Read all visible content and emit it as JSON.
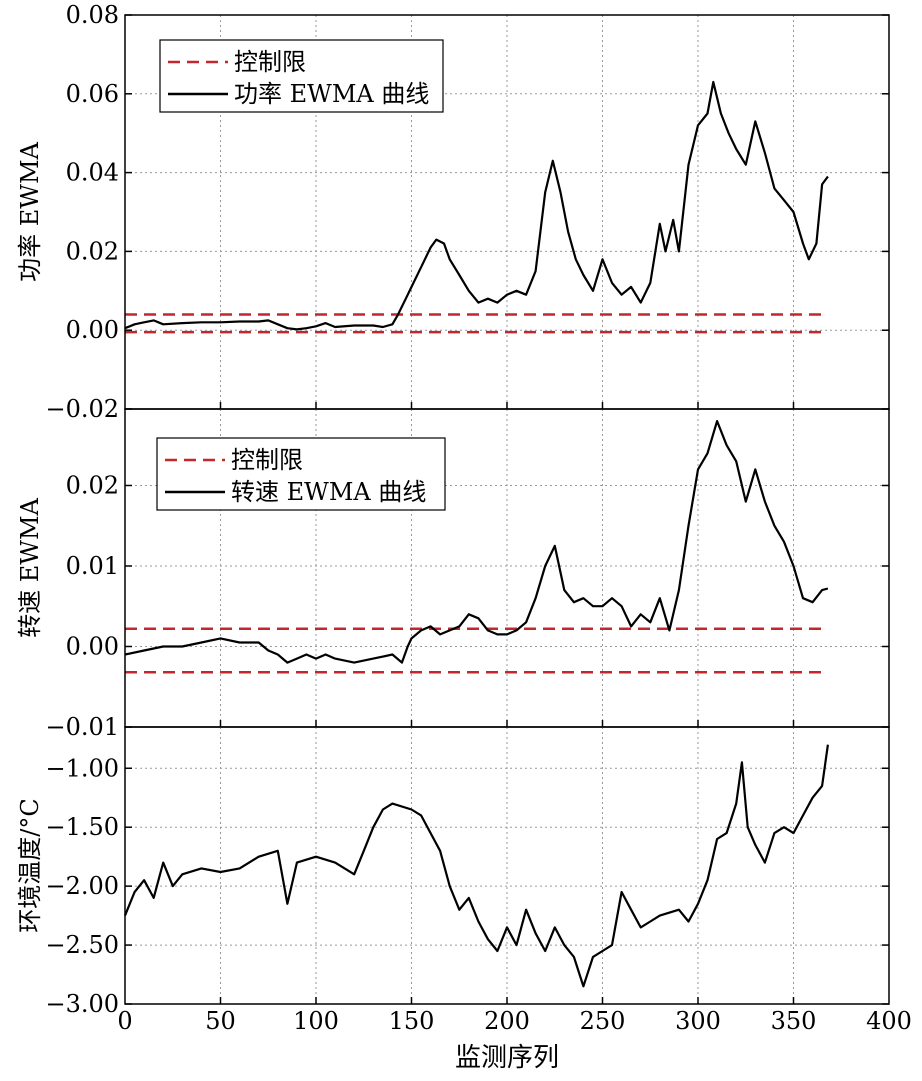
{
  "chart_data": [
    {
      "type": "line",
      "ylabel": "功率 EWMA",
      "xlim": [
        0,
        400
      ],
      "ylim": [
        -0.02,
        0.08
      ],
      "yticks": [
        "-0.02",
        "0.00",
        "0.02",
        "0.04",
        "0.06",
        "0.08"
      ],
      "grid": true,
      "legend": {
        "placement": "top-left",
        "entries": [
          "控制限",
          "功率 EWMA 曲线"
        ]
      },
      "limits": [
        0.004,
        -0.0005
      ],
      "series": [
        {
          "name": "功率 EWMA 曲线",
          "points": [
            [
              0,
              0.0005
            ],
            [
              5,
              0.0015
            ],
            [
              10,
              0.002
            ],
            [
              15,
              0.0025
            ],
            [
              20,
              0.0015
            ],
            [
              30,
              0.0018
            ],
            [
              40,
              0.002
            ],
            [
              50,
              0.002
            ],
            [
              60,
              0.0022
            ],
            [
              70,
              0.0022
            ],
            [
              75,
              0.0025
            ],
            [
              80,
              0.0015
            ],
            [
              85,
              0.0005
            ],
            [
              90,
              0.0002
            ],
            [
              95,
              0.0005
            ],
            [
              100,
              0.001
            ],
            [
              105,
              0.0018
            ],
            [
              110,
              0.0008
            ],
            [
              120,
              0.0012
            ],
            [
              130,
              0.0012
            ],
            [
              135,
              0.0008
            ],
            [
              140,
              0.0015
            ],
            [
              143,
              0.004
            ],
            [
              147,
              0.008
            ],
            [
              150,
              0.011
            ],
            [
              155,
              0.016
            ],
            [
              160,
              0.021
            ],
            [
              163,
              0.023
            ],
            [
              167,
              0.022
            ],
            [
              170,
              0.018
            ],
            [
              175,
              0.014
            ],
            [
              180,
              0.01
            ],
            [
              185,
              0.007
            ],
            [
              190,
              0.008
            ],
            [
              195,
              0.007
            ],
            [
              200,
              0.009
            ],
            [
              205,
              0.01
            ],
            [
              210,
              0.009
            ],
            [
              215,
              0.015
            ],
            [
              220,
              0.035
            ],
            [
              224,
              0.043
            ],
            [
              228,
              0.035
            ],
            [
              232,
              0.025
            ],
            [
              236,
              0.018
            ],
            [
              240,
              0.014
            ],
            [
              245,
              0.01
            ],
            [
              250,
              0.018
            ],
            [
              255,
              0.012
            ],
            [
              260,
              0.009
            ],
            [
              265,
              0.011
            ],
            [
              270,
              0.007
            ],
            [
              275,
              0.012
            ],
            [
              280,
              0.027
            ],
            [
              283,
              0.02
            ],
            [
              287,
              0.028
            ],
            [
              290,
              0.02
            ],
            [
              295,
              0.042
            ],
            [
              300,
              0.052
            ],
            [
              305,
              0.055
            ],
            [
              308,
              0.063
            ],
            [
              312,
              0.055
            ],
            [
              316,
              0.05
            ],
            [
              320,
              0.046
            ],
            [
              325,
              0.042
            ],
            [
              330,
              0.053
            ],
            [
              335,
              0.045
            ],
            [
              340,
              0.036
            ],
            [
              345,
              0.033
            ],
            [
              350,
              0.03
            ],
            [
              355,
              0.022
            ],
            [
              358,
              0.018
            ],
            [
              362,
              0.022
            ],
            [
              365,
              0.037
            ],
            [
              368,
              0.039
            ]
          ]
        }
      ]
    },
    {
      "type": "line",
      "ylabel": "转速 EWMA",
      "xlim": [
        0,
        400
      ],
      "ylim": [
        -0.01,
        0.0295
      ],
      "yticks": [
        "-0.01",
        "0.00",
        "0.01",
        "0.02"
      ],
      "grid": true,
      "legend": {
        "placement": "top-left",
        "entries": [
          "控制限",
          "转速 EWMA 曲线"
        ]
      },
      "limits": [
        0.0022,
        -0.0032
      ],
      "series": [
        {
          "name": "转速 EWMA 曲线",
          "points": [
            [
              0,
              -0.001
            ],
            [
              10,
              -0.0005
            ],
            [
              20,
              0.0
            ],
            [
              30,
              0.0
            ],
            [
              40,
              0.0005
            ],
            [
              50,
              0.001
            ],
            [
              60,
              0.0005
            ],
            [
              70,
              0.0005
            ],
            [
              75,
              -0.0005
            ],
            [
              80,
              -0.001
            ],
            [
              85,
              -0.002
            ],
            [
              90,
              -0.0015
            ],
            [
              95,
              -0.001
            ],
            [
              100,
              -0.0015
            ],
            [
              105,
              -0.001
            ],
            [
              110,
              -0.0015
            ],
            [
              120,
              -0.002
            ],
            [
              130,
              -0.0015
            ],
            [
              140,
              -0.001
            ],
            [
              145,
              -0.002
            ],
            [
              148,
              0.0
            ],
            [
              150,
              0.001
            ],
            [
              155,
              0.002
            ],
            [
              160,
              0.0025
            ],
            [
              165,
              0.0015
            ],
            [
              170,
              0.002
            ],
            [
              175,
              0.0025
            ],
            [
              180,
              0.004
            ],
            [
              185,
              0.0035
            ],
            [
              190,
              0.002
            ],
            [
              195,
              0.0015
            ],
            [
              200,
              0.0015
            ],
            [
              205,
              0.002
            ],
            [
              210,
              0.003
            ],
            [
              215,
              0.006
            ],
            [
              220,
              0.01
            ],
            [
              225,
              0.0125
            ],
            [
              230,
              0.007
            ],
            [
              235,
              0.0055
            ],
            [
              240,
              0.006
            ],
            [
              245,
              0.005
            ],
            [
              250,
              0.005
            ],
            [
              255,
              0.006
            ],
            [
              260,
              0.005
            ],
            [
              265,
              0.0025
            ],
            [
              270,
              0.004
            ],
            [
              275,
              0.003
            ],
            [
              280,
              0.006
            ],
            [
              285,
              0.002
            ],
            [
              290,
              0.007
            ],
            [
              295,
              0.015
            ],
            [
              300,
              0.022
            ],
            [
              305,
              0.024
            ],
            [
              310,
              0.028
            ],
            [
              315,
              0.025
            ],
            [
              320,
              0.023
            ],
            [
              325,
              0.018
            ],
            [
              330,
              0.022
            ],
            [
              335,
              0.018
            ],
            [
              340,
              0.015
            ],
            [
              345,
              0.013
            ],
            [
              350,
              0.01
            ],
            [
              355,
              0.006
            ],
            [
              360,
              0.0055
            ],
            [
              365,
              0.007
            ],
            [
              368,
              0.0072
            ]
          ]
        }
      ]
    },
    {
      "type": "line",
      "ylabel": "环境温度/°C",
      "xlabel": "监测序列",
      "xlim": [
        0,
        400
      ],
      "xticks": [
        "0",
        "50",
        "100",
        "150",
        "200",
        "250",
        "300",
        "350",
        "400"
      ],
      "ylim": [
        -3.0,
        -0.65
      ],
      "yticks": [
        "-3.00",
        "-2.50",
        "-2.00",
        "-1.50",
        "-1.00"
      ],
      "grid": true,
      "series": [
        {
          "name": "",
          "points": [
            [
              0,
              -2.25
            ],
            [
              5,
              -2.05
            ],
            [
              10,
              -1.95
            ],
            [
              15,
              -2.1
            ],
            [
              20,
              -1.8
            ],
            [
              25,
              -2.0
            ],
            [
              30,
              -1.9
            ],
            [
              40,
              -1.85
            ],
            [
              50,
              -1.88
            ],
            [
              60,
              -1.85
            ],
            [
              70,
              -1.75
            ],
            [
              80,
              -1.7
            ],
            [
              85,
              -2.15
            ],
            [
              90,
              -1.8
            ],
            [
              100,
              -1.75
            ],
            [
              110,
              -1.8
            ],
            [
              120,
              -1.9
            ],
            [
              125,
              -1.7
            ],
            [
              130,
              -1.5
            ],
            [
              135,
              -1.35
            ],
            [
              140,
              -1.3
            ],
            [
              150,
              -1.35
            ],
            [
              155,
              -1.4
            ],
            [
              160,
              -1.55
            ],
            [
              165,
              -1.7
            ],
            [
              170,
              -2.0
            ],
            [
              175,
              -2.2
            ],
            [
              180,
              -2.1
            ],
            [
              185,
              -2.3
            ],
            [
              190,
              -2.45
            ],
            [
              195,
              -2.55
            ],
            [
              200,
              -2.35
            ],
            [
              205,
              -2.5
            ],
            [
              210,
              -2.2
            ],
            [
              215,
              -2.4
            ],
            [
              220,
              -2.55
            ],
            [
              225,
              -2.35
            ],
            [
              230,
              -2.5
            ],
            [
              235,
              -2.6
            ],
            [
              240,
              -2.85
            ],
            [
              245,
              -2.6
            ],
            [
              250,
              -2.55
            ],
            [
              255,
              -2.5
            ],
            [
              260,
              -2.05
            ],
            [
              265,
              -2.2
            ],
            [
              270,
              -2.35
            ],
            [
              275,
              -2.3
            ],
            [
              280,
              -2.25
            ],
            [
              290,
              -2.2
            ],
            [
              295,
              -2.3
            ],
            [
              300,
              -2.15
            ],
            [
              305,
              -1.95
            ],
            [
              310,
              -1.6
            ],
            [
              315,
              -1.55
            ],
            [
              320,
              -1.3
            ],
            [
              323,
              -0.95
            ],
            [
              326,
              -1.5
            ],
            [
              330,
              -1.65
            ],
            [
              335,
              -1.8
            ],
            [
              340,
              -1.55
            ],
            [
              345,
              -1.5
            ],
            [
              350,
              -1.55
            ],
            [
              355,
              -1.4
            ],
            [
              360,
              -1.25
            ],
            [
              365,
              -1.15
            ],
            [
              368,
              -0.8
            ]
          ]
        }
      ]
    }
  ]
}
